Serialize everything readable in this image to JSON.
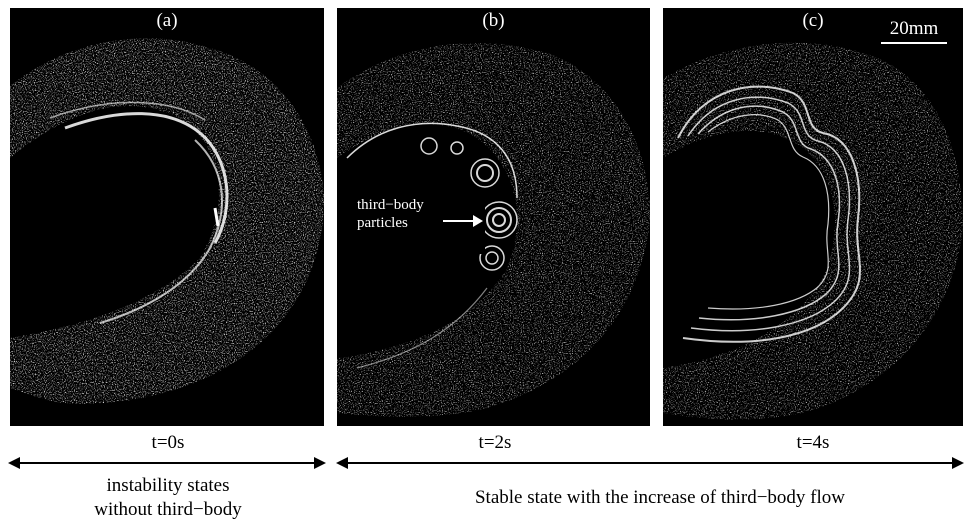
{
  "figure": {
    "panels": [
      {
        "label": "(a)",
        "time": "t=0s"
      },
      {
        "label": "(b)",
        "time": "t=2s"
      },
      {
        "label": "(c)",
        "time": "t=4s"
      }
    ],
    "scale_bar": "20mm",
    "annotation": {
      "line1": "third−body",
      "line2": "particles"
    },
    "captions": {
      "left": {
        "line1": "instability states",
        "line2": "without third−body"
      },
      "right": "Stable state with the increase of third−body flow"
    }
  }
}
